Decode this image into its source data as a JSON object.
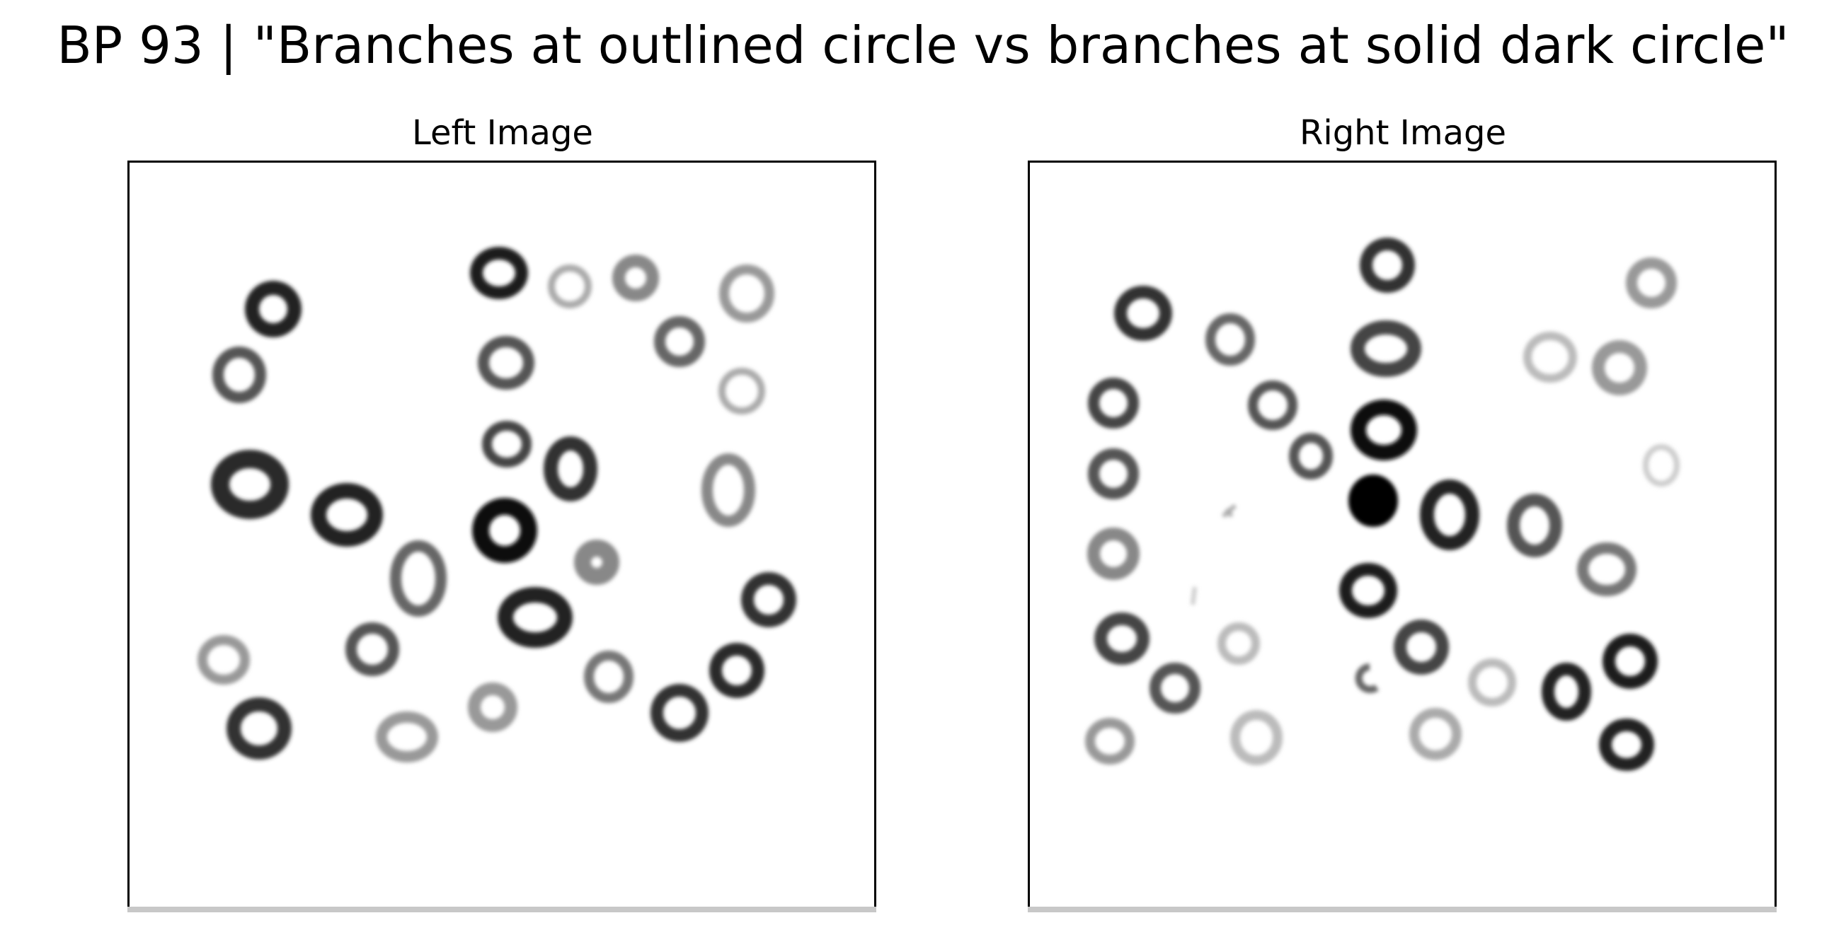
{
  "title": "BP 93 | \"Branches at outlined circle vs branches at solid dark circle\"",
  "panels": {
    "left": {
      "label": "Left Image"
    },
    "right": {
      "label": "Right Image"
    }
  },
  "colors": {
    "background": "#ffffff",
    "frame": "#000000",
    "ring_dark": "#1a1a1a",
    "ring_mid": "#555555",
    "ring_light": "#9a9a9a"
  }
}
